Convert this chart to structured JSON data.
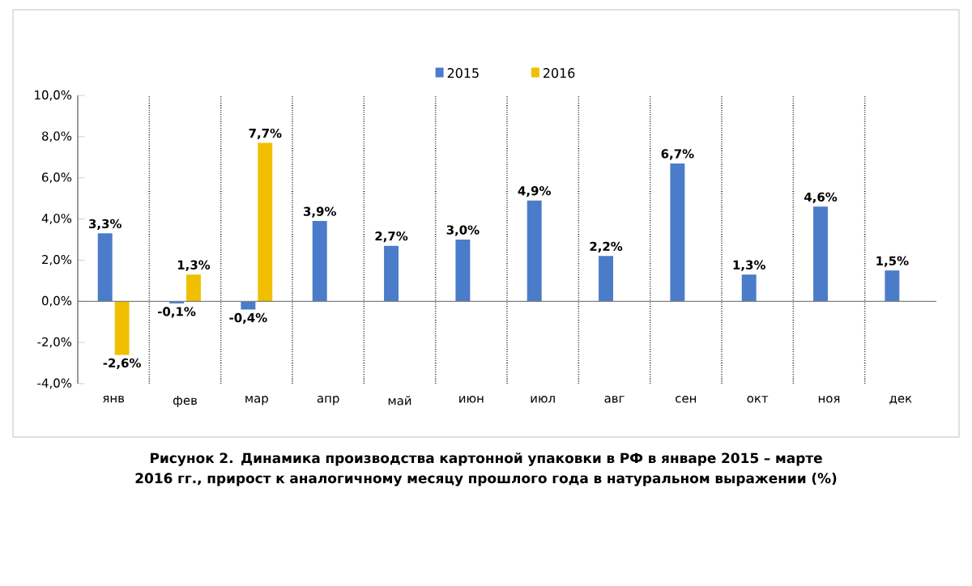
{
  "chart_data": {
    "type": "bar",
    "categories": [
      "янв",
      "фев",
      "мар",
      "апр",
      "май",
      "июн",
      "июл",
      "авг",
      "сен",
      "окт",
      "ноя",
      "дек"
    ],
    "series": [
      {
        "name": "2015",
        "color": "#4a7cc9",
        "values": [
          3.3,
          -0.1,
          -0.4,
          3.9,
          2.7,
          3.0,
          4.9,
          2.2,
          6.7,
          1.3,
          4.6,
          1.5
        ],
        "value_labels": [
          "3,3%",
          "-0,1%",
          "-0,4%",
          "3,9%",
          "2,7%",
          "3,0%",
          "4,9%",
          "2,2%",
          "6,7%",
          "1,3%",
          "4,6%",
          "1,5%"
        ]
      },
      {
        "name": "2016",
        "color": "#f0c000",
        "values": [
          -2.6,
          1.3,
          7.7,
          null,
          null,
          null,
          null,
          null,
          null,
          null,
          null,
          null
        ],
        "value_labels": [
          "-2,6%",
          "1,3%",
          "7,7%",
          null,
          null,
          null,
          null,
          null,
          null,
          null,
          null,
          null
        ]
      }
    ],
    "ylim": [
      -4,
      10
    ],
    "yticks": [
      {
        "value": -4,
        "label": "-4,0%"
      },
      {
        "value": -2,
        "label": "-2,0%"
      },
      {
        "value": 0,
        "label": "0,0%"
      },
      {
        "value": 2,
        "label": "2,0%"
      },
      {
        "value": 4,
        "label": "4,0%"
      },
      {
        "value": 6,
        "label": "6,0%"
      },
      {
        "value": 8,
        "label": "8,0%"
      },
      {
        "value": 10,
        "label": "10,0%"
      }
    ],
    "grid": "x",
    "legend": "top",
    "annotations": [
      "Рисунок 2. Динамика производства картонной упаковки в РФ в январе 2015 – марте 2016 гг., прирост к аналогичному месяцу прошлого года в натуральном выражении (%)"
    ]
  }
}
